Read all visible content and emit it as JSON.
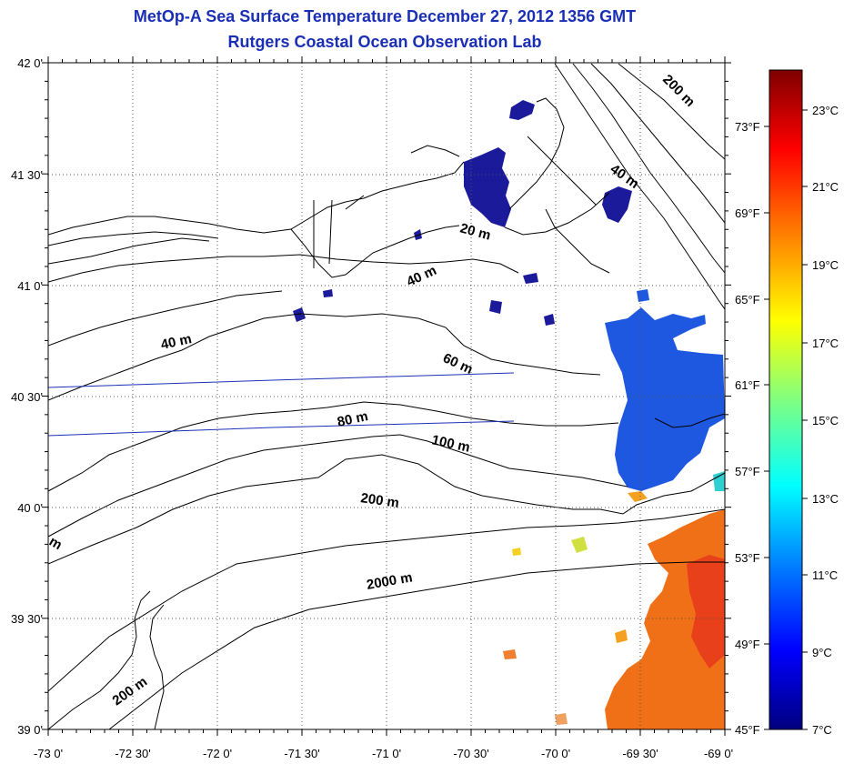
{
  "title": {
    "line1": "MetOp-A Sea Surface Temperature December 27, 2012 1356 GMT",
    "line2": "Rutgers Coastal Ocean Observation Lab"
  },
  "axes": {
    "lon_labels": [
      "-73 0'",
      "-72 30'",
      "-72 0'",
      "-71 30'",
      "-71 0'",
      "-70 30'",
      "-70 0'",
      "-69 30'",
      "-69 0'"
    ],
    "lat_labels": [
      "42 0'",
      "41 30'",
      "41 0'",
      "40 30'",
      "40 0'",
      "39 30'",
      "39 0'"
    ]
  },
  "contour_labels": [
    "200 m",
    "40 m",
    "20 m",
    "40 m",
    "40 m",
    "60 m",
    "80 m",
    "100 m",
    "200 m",
    "2000 m",
    "200 m",
    "m"
  ],
  "colorbar": {
    "celsius": [
      "23°C",
      "21°C",
      "19°C",
      "17°C",
      "15°C",
      "13°C",
      "11°C",
      "9°C",
      "7°C"
    ],
    "fahrenheit": [
      "73°F",
      "69°F",
      "65°F",
      "61°F",
      "57°F",
      "53°F",
      "49°F",
      "45°F"
    ]
  },
  "colors": {
    "title": "#1a2fb5",
    "cold": "#1a1a9a",
    "cool": "#1f58e0",
    "warm": "#f07018",
    "hot": "#e8401a"
  }
}
